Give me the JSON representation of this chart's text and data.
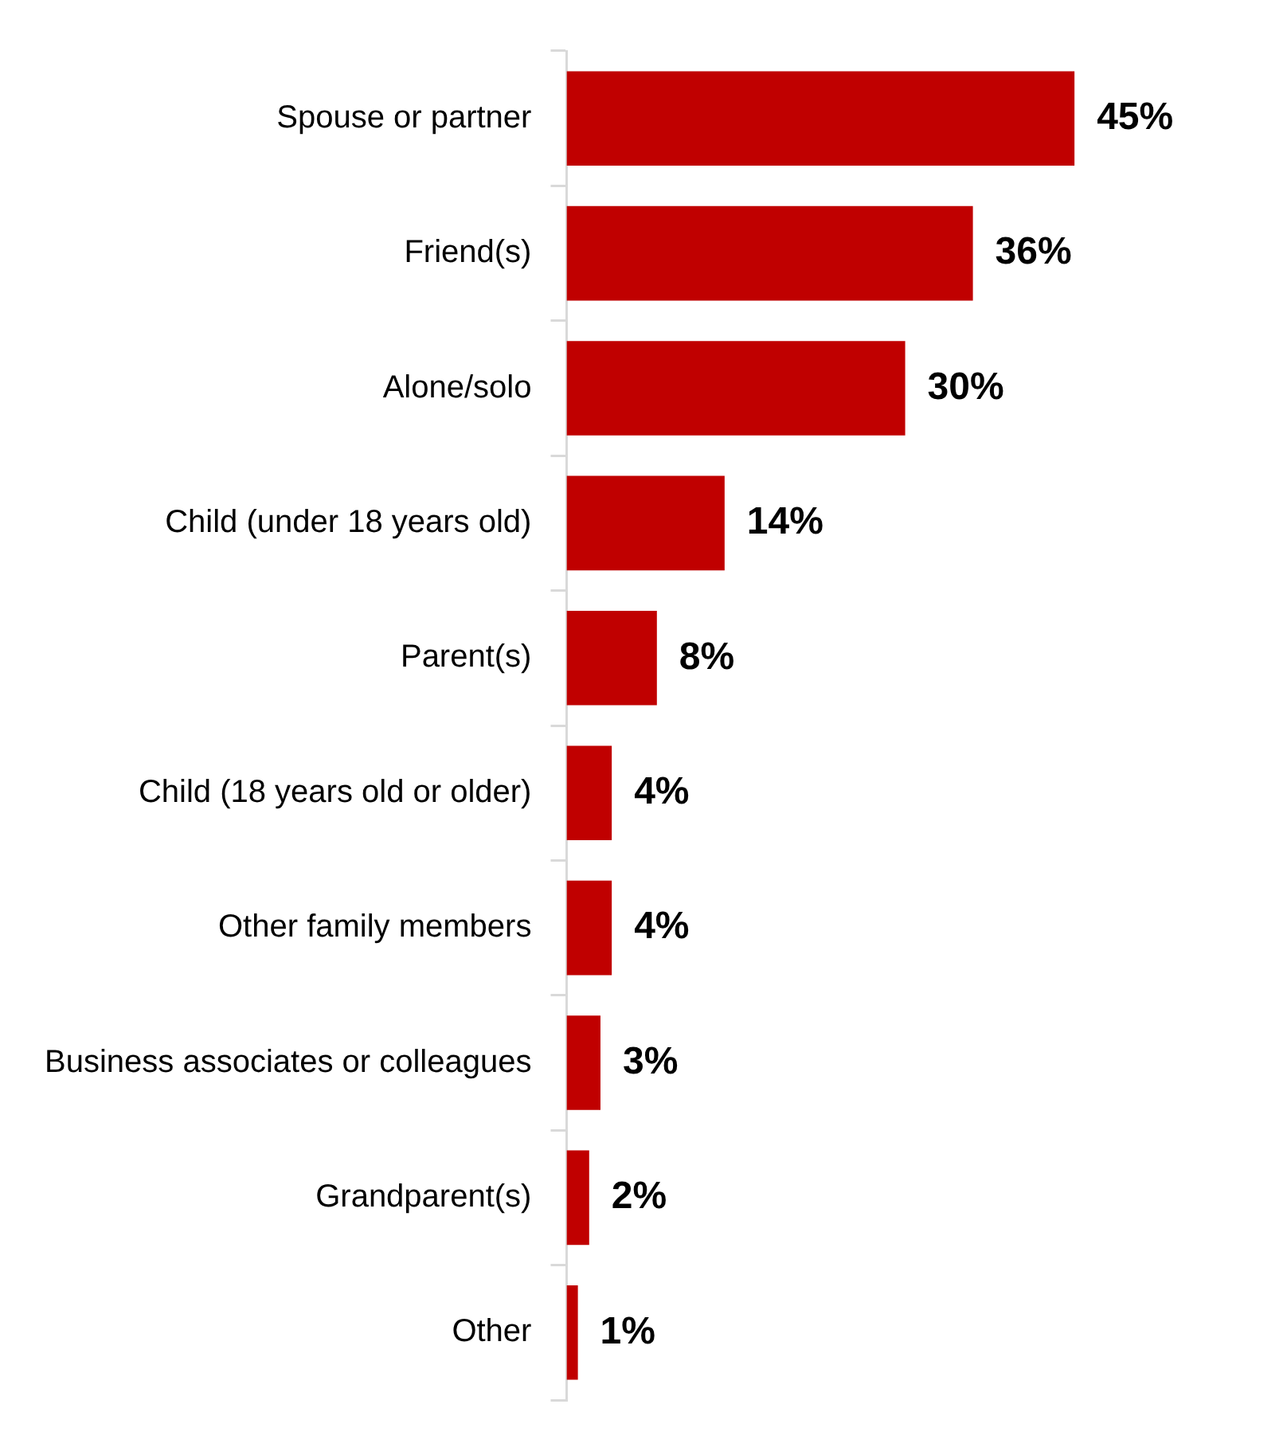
{
  "chart_data": {
    "type": "bar",
    "orientation": "horizontal",
    "categories": [
      "Spouse or partner",
      "Friend(s)",
      "Alone/solo",
      "Child (under 18 years old)",
      "Parent(s)",
      "Child (18 years old or older)",
      "Other family members",
      "Business associates or colleagues",
      "Grandparent(s)",
      "Other"
    ],
    "values": [
      45,
      36,
      30,
      14,
      8,
      4,
      4,
      3,
      2,
      1
    ],
    "value_labels": [
      "45%",
      "36%",
      "30%",
      "14%",
      "8%",
      "4%",
      "4%",
      "3%",
      "2%",
      "1%"
    ],
    "color": "#c00000",
    "legend": false
  }
}
